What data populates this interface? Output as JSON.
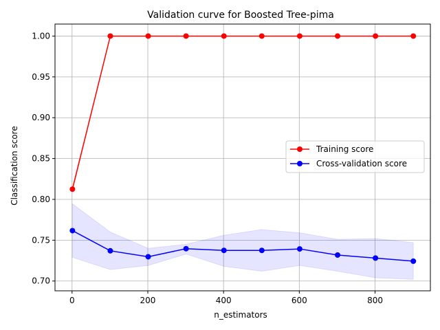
{
  "chart_data": {
    "type": "line",
    "title": "Validation curve for Boosted Tree-pima",
    "xlabel": "n_estimators",
    "ylabel": "Classification score",
    "x": [
      1,
      101,
      201,
      301,
      401,
      501,
      601,
      701,
      801,
      901
    ],
    "xlim": [
      -45,
      946
    ],
    "ylim": [
      0.688,
      1.0147
    ],
    "xticks": [
      0,
      200,
      400,
      600,
      800
    ],
    "yticks": [
      0.7,
      0.75,
      0.8,
      0.85,
      0.9,
      0.95,
      1.0
    ],
    "xtick_labels": [
      "0",
      "200",
      "400",
      "600",
      "800"
    ],
    "ytick_labels": [
      "0.70",
      "0.75",
      "0.80",
      "0.85",
      "0.90",
      "0.95",
      "1.00"
    ],
    "grid": true,
    "legend": "center-right",
    "series": [
      {
        "name": "Training score",
        "color": "#ff0000",
        "band_color": "#ff0000",
        "values": [
          0.8125,
          1.0,
          1.0,
          1.0,
          1.0,
          1.0,
          1.0,
          1.0,
          1.0,
          1.0
        ],
        "lower": [
          0.8095,
          1.0,
          1.0,
          1.0,
          1.0,
          1.0,
          1.0,
          1.0,
          1.0,
          1.0
        ],
        "upper": [
          0.8155,
          1.0,
          1.0,
          1.0,
          1.0,
          1.0,
          1.0,
          1.0,
          1.0,
          1.0
        ]
      },
      {
        "name": "Cross-validation score",
        "color": "#0000ff",
        "band_color": "#0000ff",
        "values": [
          0.7617,
          0.737,
          0.7297,
          0.7396,
          0.7375,
          0.7375,
          0.7393,
          0.7318,
          0.7281,
          0.7243
        ],
        "lower": [
          0.729,
          0.714,
          0.719,
          0.733,
          0.718,
          0.712,
          0.719,
          0.712,
          0.704,
          0.702
        ],
        "upper": [
          0.7945,
          0.76,
          0.74,
          0.745,
          0.756,
          0.763,
          0.759,
          0.751,
          0.752,
          0.747
        ]
      }
    ]
  }
}
